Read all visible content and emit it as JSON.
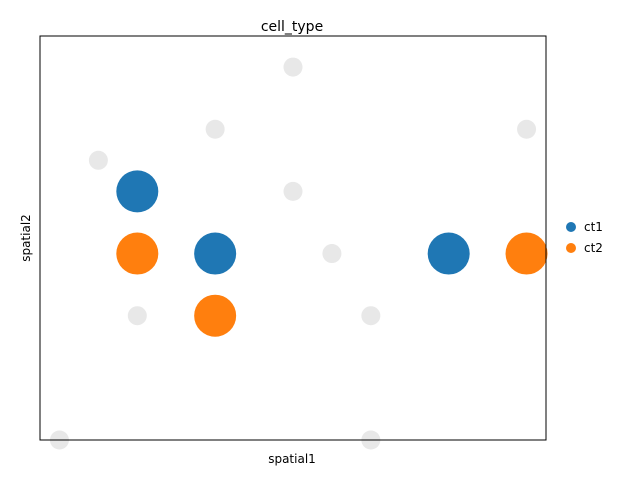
{
  "chart_data": {
    "type": "scatter",
    "title": "cell_type",
    "xlabel": "spatial1",
    "ylabel": "spatial2",
    "xlim": [
      0,
      13
    ],
    "ylim": [
      0,
      13
    ],
    "grid": false,
    "ticks_visible": false,
    "legend_position": "right",
    "background_color": "#e8e8e8",
    "series": [
      {
        "name": "ct1",
        "color": "#1f77b4",
        "points": [
          [
            2.5,
            8
          ],
          [
            4.5,
            6
          ],
          [
            10.5,
            6
          ]
        ]
      },
      {
        "name": "ct2",
        "color": "#ff7f0e",
        "points": [
          [
            2.5,
            6
          ],
          [
            4.5,
            4
          ],
          [
            12.5,
            6
          ]
        ]
      }
    ],
    "background_points": [
      [
        6.5,
        12
      ],
      [
        4.5,
        10
      ],
      [
        12.5,
        10
      ],
      [
        1.5,
        9
      ],
      [
        6.5,
        8
      ],
      [
        7.5,
        6
      ],
      [
        2.5,
        4
      ],
      [
        8.5,
        4
      ],
      [
        0.5,
        0
      ],
      [
        8.5,
        0
      ]
    ]
  }
}
